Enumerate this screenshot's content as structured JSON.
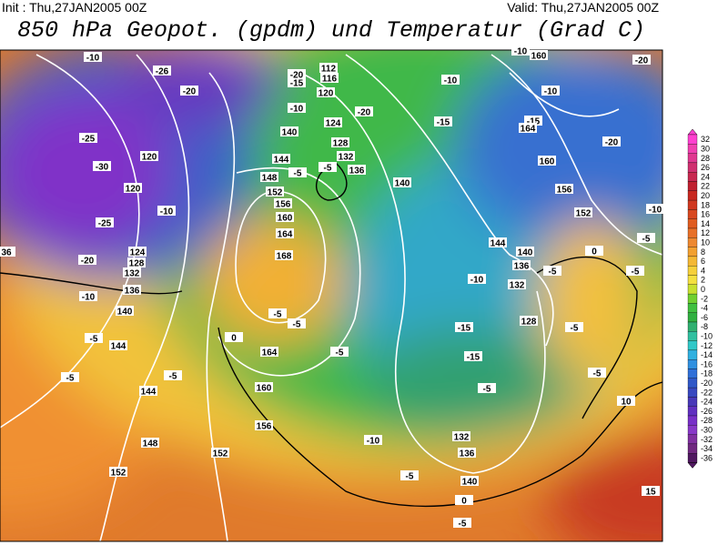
{
  "header": {
    "init": "Init : Thu,27JAN2005 00Z",
    "valid": "Valid: Thu,27JAN2005 00Z",
    "title": "850 hPa Geopot. (gpdm) und Temperatur (Grad C)"
  },
  "legend": {
    "labels": [
      32,
      30,
      28,
      26,
      24,
      22,
      20,
      18,
      16,
      14,
      12,
      10,
      8,
      6,
      4,
      2,
      0,
      -2,
      -4,
      -6,
      -8,
      -10,
      -12,
      -14,
      -16,
      -18,
      -20,
      -22,
      -24,
      -26,
      -28,
      -30,
      -32,
      -34,
      -36
    ],
    "colors": [
      "#ff40d0",
      "#f040b0",
      "#e03890",
      "#d03070",
      "#c82850",
      "#c02030",
      "#c82820",
      "#d03820",
      "#d84820",
      "#e05c20",
      "#e87028",
      "#ee8830",
      "#f2a030",
      "#f4b834",
      "#f6d03a",
      "#f4e040",
      "#c8e030",
      "#70d030",
      "#40c040",
      "#30b040",
      "#30b070",
      "#30c0a0",
      "#30c8c8",
      "#30b0e0",
      "#3090e0",
      "#3070d8",
      "#3058c8",
      "#3848c0",
      "#4838b8",
      "#6030c0",
      "#7830c8",
      "#8838c8",
      "#8030a0",
      "#702880",
      "#501860"
    ]
  },
  "contour_labels": [
    "-10",
    "-26",
    "-20",
    "-25",
    "-30",
    "120",
    "120",
    "-25",
    "-10",
    "124",
    "128",
    "132",
    "-20",
    "136",
    "-10",
    "140",
    "-5",
    "144",
    "36",
    "-5",
    "-5",
    "144",
    "148",
    "152",
    "152",
    "156",
    "160",
    "164",
    "0",
    "-5",
    "-5",
    "168",
    "164",
    "160",
    "156",
    "152",
    "148",
    "144",
    "140",
    "-5",
    "-5",
    "-10",
    "-15",
    "-20",
    "112",
    "116",
    "120",
    "124",
    "128",
    "132",
    "136",
    "-20",
    "140",
    "-15",
    "-10",
    "160",
    "-10",
    "-10",
    "-15",
    "164",
    "160",
    "156",
    "152",
    "-20",
    "-20",
    "-10",
    "-5",
    "0",
    "-5",
    "-5",
    "-5",
    "144",
    "140",
    "136",
    "132",
    "-10",
    "128",
    "-15",
    "-15",
    "-5",
    "-10",
    "-5",
    "132",
    "136",
    "140",
    "0",
    "-5",
    "10",
    "15",
    "-5",
    "-5"
  ]
}
